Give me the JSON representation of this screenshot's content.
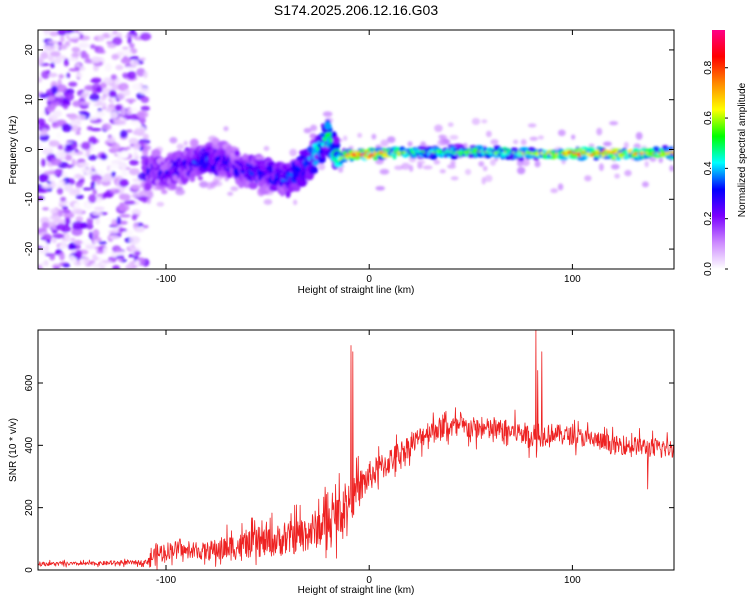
{
  "title": "S174.2025.206.12.16.G03",
  "chart_data": [
    {
      "type": "heatmap",
      "xlabel": "Height of straight line (km)",
      "ylabel": "Frequency (Hz)",
      "xlim": [
        -163,
        150
      ],
      "ylim": [
        -24,
        24
      ],
      "xticks": [
        -100,
        0,
        100
      ],
      "yticks": [
        20,
        10,
        0,
        -10,
        -20
      ],
      "colorbar": {
        "label": "Normalized spectral amplitude",
        "range": [
          0,
          0.95
        ],
        "ticks": [
          0.0,
          0.2,
          0.4,
          0.6,
          0.8
        ],
        "tick_labels": [
          "0.0",
          "0.2",
          "0.4",
          "0.6",
          "0.8"
        ],
        "colors": [
          "#ffffff",
          "#cc88ff",
          "#7b00ff",
          "#0000ff",
          "#00ffff",
          "#00ff00",
          "#ffff00",
          "#ff8800",
          "#ff0000",
          "#ff0088"
        ]
      },
      "ridge": {
        "x": [
          -110,
          -100,
          -90,
          -80,
          -70,
          -60,
          -50,
          -40,
          -30,
          -25,
          -20,
          -15,
          -10,
          0,
          20,
          40,
          60,
          80,
          100,
          120,
          150
        ],
        "frequency": [
          -4,
          -5,
          -3,
          -2,
          -3,
          -4,
          -5,
          -6,
          -3,
          0,
          3,
          -2,
          -1,
          -1,
          -0.5,
          -0.5,
          -0.5,
          -0.8,
          -0.8,
          -0.8,
          -0.8
        ],
        "amplitude": [
          0.3,
          0.25,
          0.3,
          0.35,
          0.3,
          0.3,
          0.3,
          0.35,
          0.4,
          0.45,
          0.5,
          0.55,
          0.85,
          0.8,
          0.55,
          0.5,
          0.6,
          0.55,
          0.75,
          0.8,
          0.6
        ]
      },
      "noise_region": {
        "x": [
          -163,
          -110
        ],
        "frequency": [
          -24,
          24
        ],
        "amplitude": 0.15
      }
    },
    {
      "type": "line",
      "xlabel": "Height of straight line (km)",
      "ylabel": "SNR (10 * v/v)",
      "xlim": [
        -163,
        150
      ],
      "ylim": [
        0,
        770
      ],
      "xticks": [
        -100,
        0,
        100
      ],
      "yticks": [
        0,
        200,
        400,
        600
      ],
      "color": "#ee2222",
      "envelope": {
        "x": [
          -163,
          -140,
          -110,
          -105,
          -95,
          -90,
          -80,
          -70,
          -60,
          -50,
          -40,
          -30,
          -20,
          -12,
          -10,
          -8,
          -5,
          0,
          10,
          20,
          30,
          40,
          50,
          60,
          70,
          75,
          80,
          82,
          83,
          85,
          88,
          90,
          100,
          110,
          120,
          130,
          140,
          150
        ],
        "mean": [
          20,
          20,
          25,
          50,
          70,
          60,
          60,
          70,
          80,
          90,
          100,
          120,
          150,
          200,
          220,
          230,
          260,
          300,
          350,
          400,
          450,
          460,
          455,
          450,
          445,
          440,
          430,
          420,
          420,
          430,
          440,
          440,
          430,
          420,
          400,
          400,
          390,
          390
        ],
        "spread": [
          10,
          10,
          12,
          60,
          40,
          30,
          50,
          70,
          70,
          80,
          90,
          100,
          110,
          120,
          100,
          100,
          100,
          80,
          70,
          60,
          60,
          60,
          60,
          60,
          60,
          60,
          60,
          60,
          60,
          60,
          60,
          50,
          50,
          50,
          50,
          50,
          50,
          50
        ]
      },
      "spikes": [
        {
          "x": -9,
          "y": 720
        },
        {
          "x": -8,
          "y": 700
        },
        {
          "x": 82,
          "y": 770
        },
        {
          "x": 83,
          "y": 640
        },
        {
          "x": 85,
          "y": 700
        },
        {
          "x": 137,
          "y": 260
        }
      ]
    }
  ]
}
